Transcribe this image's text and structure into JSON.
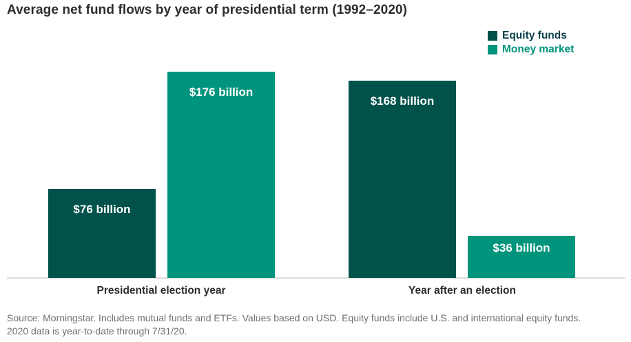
{
  "title": "Average net fund flows by year of presidential term (1992–2020)",
  "legend": {
    "items": [
      {
        "label": "Equity funds",
        "swatch_color": "#00524a",
        "text_color": "#0a3f46"
      },
      {
        "label": "Money market",
        "swatch_color": "#00947c",
        "text_color": "#00947c"
      }
    ]
  },
  "chart_data": {
    "type": "bar",
    "categories": [
      "Presidential election year",
      "Year after an election"
    ],
    "series": [
      {
        "name": "Equity funds",
        "color": "#00524a",
        "values": [
          76,
          168
        ],
        "labels": [
          "$76 billion",
          "$168 billion"
        ]
      },
      {
        "name": "Money market",
        "color": "#00947c",
        "values": [
          176,
          36
        ],
        "labels": [
          "$176 billion",
          "$36 billion"
        ]
      }
    ],
    "title": "Average net fund flows by year of presidential term (1992–2020)",
    "xlabel": "",
    "ylabel": "",
    "ylim": [
      0,
      176
    ],
    "grid": false,
    "legend_position": "top-right",
    "value_label_color": "#ffffff",
    "axis_line_color": "#e4e4e4"
  },
  "source_note": {
    "line1": "Source: Morningstar. Includes mutual funds and ETFs. Values based on USD. Equity funds include U.S. and international equity funds.",
    "line2": "2020 data is year-to-date through 7/31/20."
  }
}
